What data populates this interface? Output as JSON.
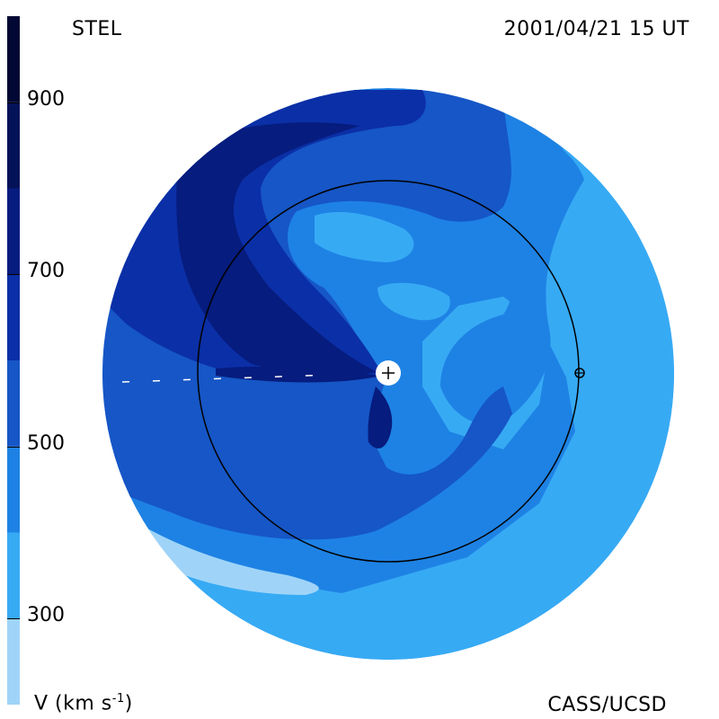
{
  "header": {
    "source": "STEL",
    "timestamp": "2001/04/21 15 UT"
  },
  "footer": {
    "unit_label": "V (km s",
    "unit_exp": "-1",
    "unit_close": ")",
    "credit": "CASS/UCSD"
  },
  "colorbar": {
    "ticks": [
      "900",
      "700",
      "500",
      "300"
    ],
    "tick_values": [
      900,
      700,
      500,
      300
    ],
    "range": [
      200,
      1000
    ],
    "levels": [
      {
        "from": 200,
        "to": 300,
        "color": "#9fd4f8"
      },
      {
        "from": 300,
        "to": 400,
        "color": "#37aaf4"
      },
      {
        "from": 400,
        "to": 500,
        "color": "#1e82e4"
      },
      {
        "from": 500,
        "to": 600,
        "color": "#1656c6"
      },
      {
        "from": 600,
        "to": 700,
        "color": "#0b2fa6"
      },
      {
        "from": 700,
        "to": 800,
        "color": "#061c7e"
      },
      {
        "from": 800,
        "to": 900,
        "color": "#041258"
      },
      {
        "from": 900,
        "to": 1000,
        "color": "#010833"
      }
    ]
  },
  "chart_data": {
    "type": "heatmap",
    "title": "",
    "xlabel": "",
    "ylabel": "",
    "colorbar_label": "V (km s-1)",
    "value_range": [
      200,
      1000
    ],
    "markers": [
      "sun",
      "earth-orbit",
      "earth"
    ]
  }
}
